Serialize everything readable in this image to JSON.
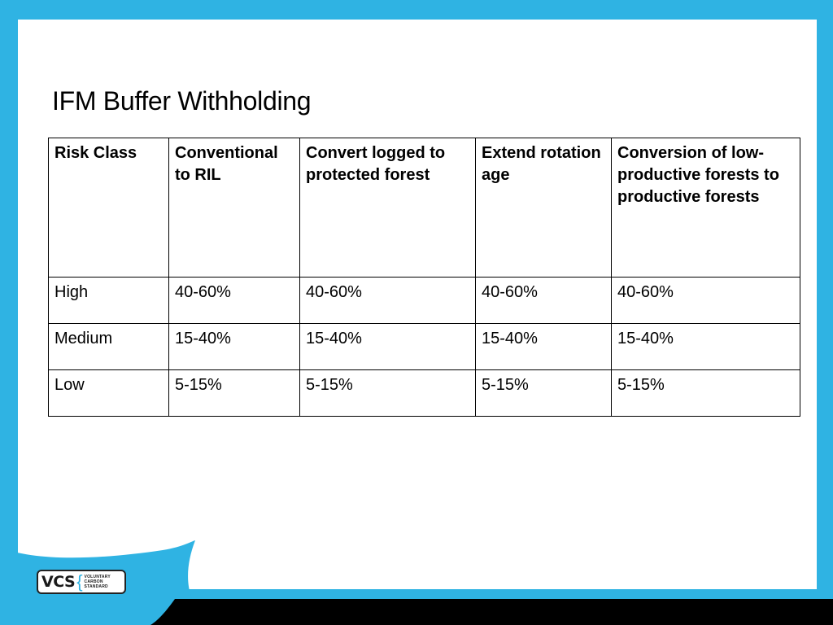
{
  "slide": {
    "title": "IFM Buffer Withholding"
  },
  "table": {
    "headers": [
      "Risk Class",
      "Conventional to RIL",
      "Convert logged to protected forest",
      "Extend rotation age",
      "Conversion of low-productive forests to productive forests"
    ],
    "rows": [
      [
        "High",
        "40-60%",
        "40-60%",
        "40-60%",
        "40-60%"
      ],
      [
        "Medium",
        "15-40%",
        "15-40%",
        "15-40%",
        "15-40%"
      ],
      [
        "Low",
        "5-15%",
        "5-15%",
        "5-15%",
        "5-15%"
      ]
    ]
  },
  "logo": {
    "mark": "VCS",
    "words": [
      "VOLUNTARY",
      "CARBON",
      "STANDARD"
    ]
  },
  "colors": {
    "frame": "#2fb3e3",
    "footer": "#000000",
    "background": "#ffffff"
  }
}
